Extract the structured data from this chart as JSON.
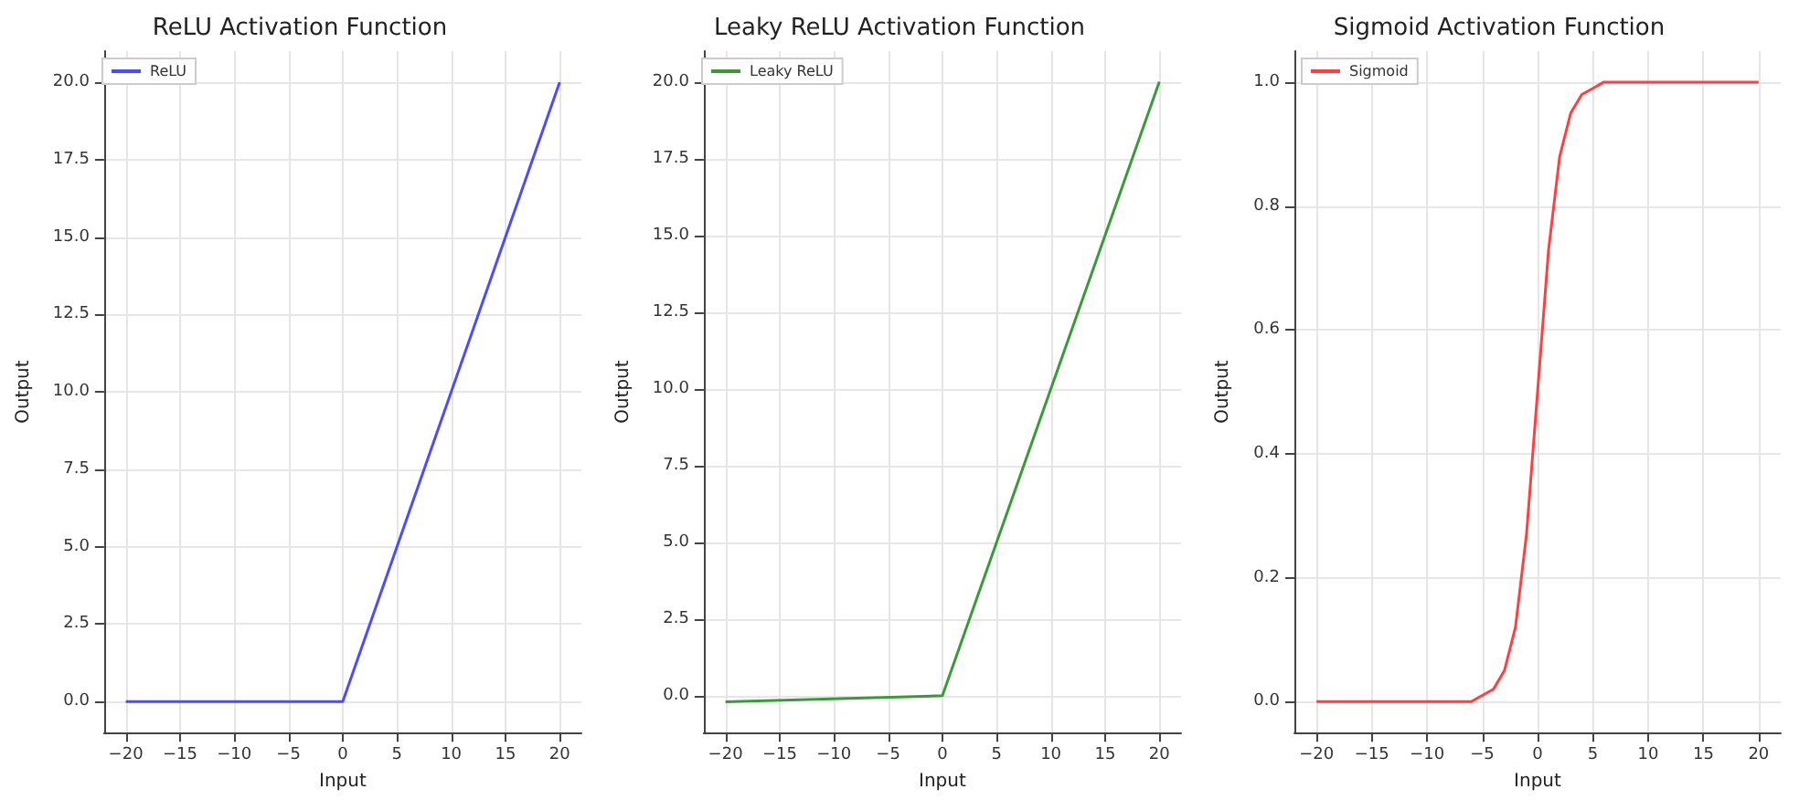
{
  "chart_data": [
    {
      "type": "line",
      "title": "ReLU Activation Function",
      "xlabel": "Input",
      "ylabel": "Output",
      "x": [
        -20,
        0,
        20
      ],
      "series": [
        {
          "name": "ReLU",
          "color": "#4c4cff",
          "values": [
            0,
            0,
            20
          ]
        }
      ],
      "xlim": [
        -22,
        22
      ],
      "ylim": [
        -1,
        21
      ],
      "xticks": [
        {
          "value": -20,
          "label": "−20"
        },
        {
          "value": -15,
          "label": "−15"
        },
        {
          "value": -10,
          "label": "−10"
        },
        {
          "value": -5,
          "label": "−5"
        },
        {
          "value": 0,
          "label": "0"
        },
        {
          "value": 5,
          "label": "5"
        },
        {
          "value": 10,
          "label": "10"
        },
        {
          "value": 15,
          "label": "15"
        },
        {
          "value": 20,
          "label": "20"
        }
      ],
      "yticks": [
        {
          "value": 0,
          "label": "0.0"
        },
        {
          "value": 2.5,
          "label": "2.5"
        },
        {
          "value": 5,
          "label": "5.0"
        },
        {
          "value": 7.5,
          "label": "7.5"
        },
        {
          "value": 10,
          "label": "10.0"
        },
        {
          "value": 12.5,
          "label": "12.5"
        },
        {
          "value": 15,
          "label": "15.0"
        },
        {
          "value": 17.5,
          "label": "17.5"
        },
        {
          "value": 20,
          "label": "20.0"
        }
      ],
      "grid": true,
      "legend": "top left"
    },
    {
      "type": "line",
      "title": "Leaky ReLU Activation Function",
      "xlabel": "Input",
      "ylabel": "Output",
      "x": [
        -20,
        0,
        20
      ],
      "series": [
        {
          "name": "Leaky ReLU",
          "color": "#3a9a3a",
          "values": [
            -0.2,
            0,
            20
          ]
        }
      ],
      "xlim": [
        -22,
        22
      ],
      "ylim": [
        -1.2,
        21
      ],
      "xticks": [
        {
          "value": -20,
          "label": "−20"
        },
        {
          "value": -15,
          "label": "−15"
        },
        {
          "value": -10,
          "label": "−10"
        },
        {
          "value": -5,
          "label": "−5"
        },
        {
          "value": 0,
          "label": "0"
        },
        {
          "value": 5,
          "label": "5"
        },
        {
          "value": 10,
          "label": "10"
        },
        {
          "value": 15,
          "label": "15"
        },
        {
          "value": 20,
          "label": "20"
        }
      ],
      "yticks": [
        {
          "value": 0,
          "label": "0.0"
        },
        {
          "value": 2.5,
          "label": "2.5"
        },
        {
          "value": 5,
          "label": "5.0"
        },
        {
          "value": 7.5,
          "label": "7.5"
        },
        {
          "value": 10,
          "label": "10.0"
        },
        {
          "value": 12.5,
          "label": "12.5"
        },
        {
          "value": 15,
          "label": "15.0"
        },
        {
          "value": 17.5,
          "label": "17.5"
        },
        {
          "value": 20,
          "label": "20.0"
        }
      ],
      "grid": true,
      "legend": "top left"
    },
    {
      "type": "line",
      "title": "Sigmoid Activation Function",
      "xlabel": "Input",
      "ylabel": "Output",
      "x": [
        -20,
        -10,
        -6,
        -5,
        -4,
        -3,
        -2,
        -1,
        0,
        1,
        2,
        3,
        4,
        5,
        6,
        10,
        20
      ],
      "series": [
        {
          "name": "Sigmoid",
          "color": "#ff4040",
          "values": [
            0,
            0,
            0,
            0.01,
            0.02,
            0.05,
            0.12,
            0.27,
            0.5,
            0.73,
            0.88,
            0.95,
            0.98,
            0.99,
            1,
            1,
            1
          ]
        }
      ],
      "xlim": [
        -22,
        22
      ],
      "ylim": [
        -0.05,
        1.05
      ],
      "xticks": [
        {
          "value": -20,
          "label": "−20"
        },
        {
          "value": -15,
          "label": "−15"
        },
        {
          "value": -10,
          "label": "−10"
        },
        {
          "value": -5,
          "label": "−5"
        },
        {
          "value": 0,
          "label": "0"
        },
        {
          "value": 5,
          "label": "5"
        },
        {
          "value": 10,
          "label": "10"
        },
        {
          "value": 15,
          "label": "15"
        },
        {
          "value": 20,
          "label": "20"
        }
      ],
      "yticks": [
        {
          "value": 0,
          "label": "0.0"
        },
        {
          "value": 0.2,
          "label": "0.2"
        },
        {
          "value": 0.4,
          "label": "0.4"
        },
        {
          "value": 0.6,
          "label": "0.6"
        },
        {
          "value": 0.8,
          "label": "0.8"
        },
        {
          "value": 1,
          "label": "1.0"
        }
      ],
      "grid": true,
      "legend": "top left"
    }
  ]
}
